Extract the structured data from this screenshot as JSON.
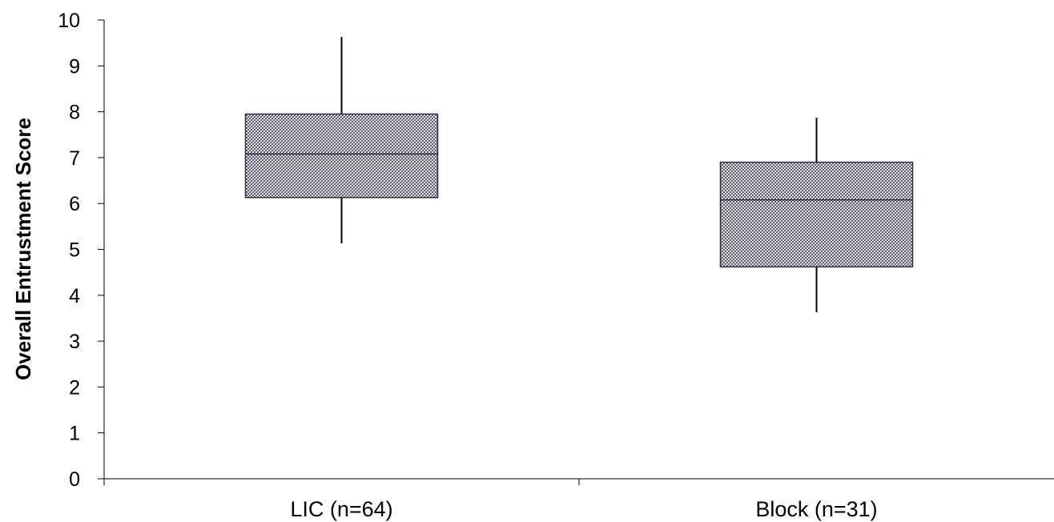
{
  "chart_data": {
    "type": "boxplot",
    "title": "",
    "xlabel": "",
    "ylabel": "Overall Entrustment Score",
    "ylim": [
      0,
      10
    ],
    "yticks": [
      "0",
      "1",
      "2",
      "3",
      "4",
      "5",
      "6",
      "7",
      "8",
      "9",
      "10"
    ],
    "grid": false,
    "legend": "none",
    "categories": [
      "LIC (n=64)",
      "Block (n=31)"
    ],
    "boxes": [
      {
        "category": "LIC (n=64)",
        "min": 5.13,
        "q1": 6.13,
        "median": 7.08,
        "q3": 7.95,
        "max": 9.63
      },
      {
        "category": "Block (n=31)",
        "min": 3.63,
        "q1": 4.62,
        "median": 6.08,
        "q3": 6.9,
        "max": 7.87
      }
    ],
    "box_fill": "crosshatch",
    "colors": {
      "box_edge": "#2a2a4a",
      "hatch": "#3a3a4a",
      "axis": "#000000"
    }
  }
}
